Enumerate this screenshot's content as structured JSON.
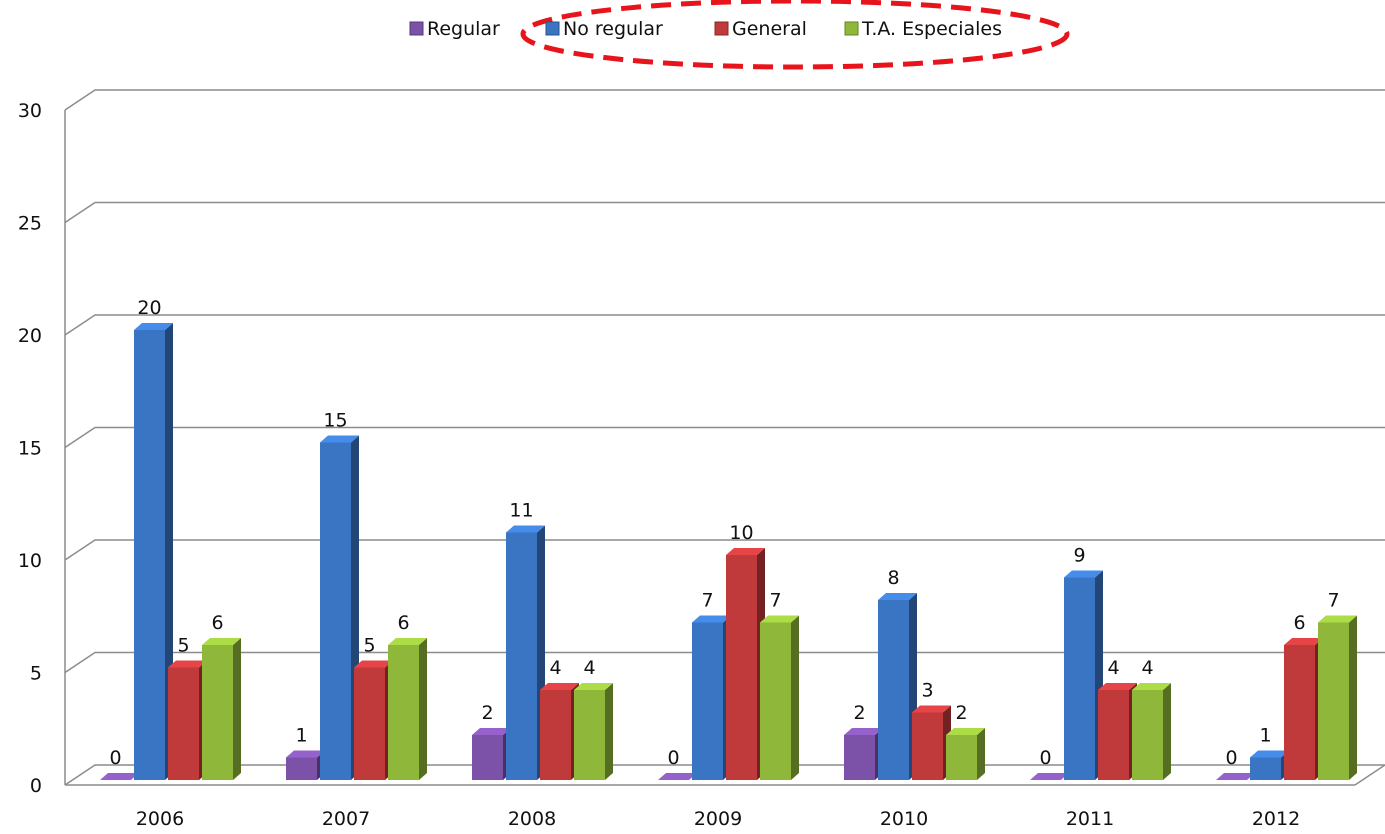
{
  "chart_data": {
    "type": "bar3d",
    "categories": [
      "2006",
      "2007",
      "2008",
      "2009",
      "2010",
      "2011",
      "2012"
    ],
    "series": [
      {
        "name": "Regular",
        "color": "#7b52a8",
        "values": [
          0,
          1,
          2,
          0,
          2,
          0,
          0
        ]
      },
      {
        "name": "No regular",
        "color": "#3a75c4",
        "values": [
          20,
          15,
          11,
          7,
          8,
          9,
          1
        ]
      },
      {
        "name": "General",
        "color": "#c0393b",
        "values": [
          5,
          5,
          4,
          10,
          3,
          4,
          6
        ]
      },
      {
        "name": "T.A. Especiales",
        "color": "#8fb83a",
        "values": [
          6,
          6,
          4,
          7,
          2,
          4,
          7
        ]
      }
    ],
    "ylim": [
      0,
      30
    ],
    "yticks": [
      0,
      5,
      10,
      15,
      20,
      25,
      30
    ],
    "grid": true
  }
}
